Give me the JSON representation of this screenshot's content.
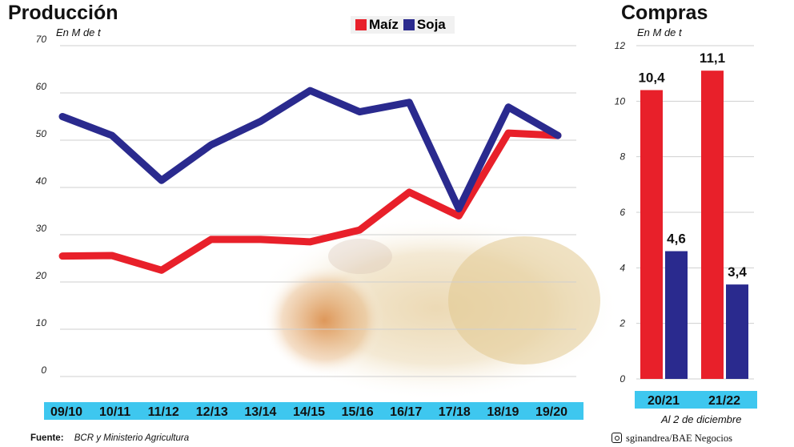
{
  "left_panel": {
    "title": "Producción",
    "unit": "En M de t"
  },
  "right_panel": {
    "title": "Compras",
    "unit": "En M de t",
    "note": "Al 2 de diciembre"
  },
  "footer": {
    "source_label": "Fuente:",
    "source_text": "BCR y Ministerio Agricultura",
    "credit": "sginandrea/BAE Negocios"
  },
  "colors": {
    "maiz": "#e8202a",
    "soja": "#2a2a8e",
    "band": "#3ec7ef",
    "grid": "#cfcfcf"
  },
  "chart_data": [
    {
      "type": "line",
      "title": "Producción",
      "ylabel": "En M de t",
      "ylim": [
        0,
        70
      ],
      "yticks": [
        0,
        10,
        20,
        30,
        40,
        50,
        60,
        70
      ],
      "grid": true,
      "legend_position": "top-center",
      "categories": [
        "09/10",
        "10/11",
        "11/12",
        "12/13",
        "13/14",
        "14/15",
        "15/16",
        "16/17",
        "17/18",
        "18/19",
        "19/20"
      ],
      "series": [
        {
          "name": "Maíz",
          "color": "#e8202a",
          "values": [
            25.5,
            25.6,
            22.5,
            29,
            29,
            28.5,
            31,
            39,
            34,
            51.5,
            51
          ]
        },
        {
          "name": "Soja",
          "color": "#2a2a8e",
          "values": [
            55,
            51,
            41.5,
            49,
            54,
            60.5,
            56,
            58,
            35.5,
            57,
            51
          ]
        }
      ]
    },
    {
      "type": "bar",
      "title": "Compras",
      "ylabel": "En M de t",
      "ylim": [
        0,
        12
      ],
      "yticks": [
        0,
        2,
        4,
        6,
        8,
        10,
        12
      ],
      "grid": true,
      "categories": [
        "20/21",
        "21/22"
      ],
      "series": [
        {
          "name": "Maíz",
          "color": "#e8202a",
          "values": [
            10.4,
            11.1
          ],
          "labels": [
            "10,4",
            "11,1"
          ]
        },
        {
          "name": "Soja",
          "color": "#2a2a8e",
          "values": [
            4.6,
            3.4
          ],
          "labels": [
            "4,6",
            "3,4"
          ]
        }
      ]
    }
  ]
}
